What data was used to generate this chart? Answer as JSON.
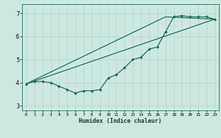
{
  "xlabel": "Humidex (Indice chaleur)",
  "background_color": "#cce8e0",
  "line_color": "#1a6b5a",
  "grid_color": "#b8d8d0",
  "xlim": [
    -0.5,
    23.5
  ],
  "ylim": [
    2.8,
    7.4
  ],
  "yticks": [
    3,
    4,
    5,
    6,
    7
  ],
  "xticks": [
    0,
    1,
    2,
    3,
    4,
    5,
    6,
    7,
    8,
    9,
    10,
    11,
    12,
    13,
    14,
    15,
    16,
    17,
    18,
    19,
    20,
    21,
    22,
    23
  ],
  "line1_x": [
    0,
    1,
    2,
    3,
    4,
    5,
    6,
    7,
    8,
    9,
    10,
    11,
    12,
    13,
    14,
    15,
    16,
    17,
    18,
    19,
    20,
    21,
    22,
    23
  ],
  "line1_y": [
    3.95,
    4.05,
    4.05,
    4.0,
    3.85,
    3.7,
    3.55,
    3.65,
    3.65,
    3.7,
    4.2,
    4.35,
    4.65,
    5.0,
    5.1,
    5.45,
    5.55,
    6.2,
    6.85,
    6.9,
    6.85,
    6.85,
    6.85,
    6.75
  ],
  "line2_x": [
    0,
    23
  ],
  "line2_y": [
    3.95,
    6.75
  ],
  "line3_x": [
    0,
    17,
    23
  ],
  "line3_y": [
    3.95,
    6.85,
    6.75
  ]
}
